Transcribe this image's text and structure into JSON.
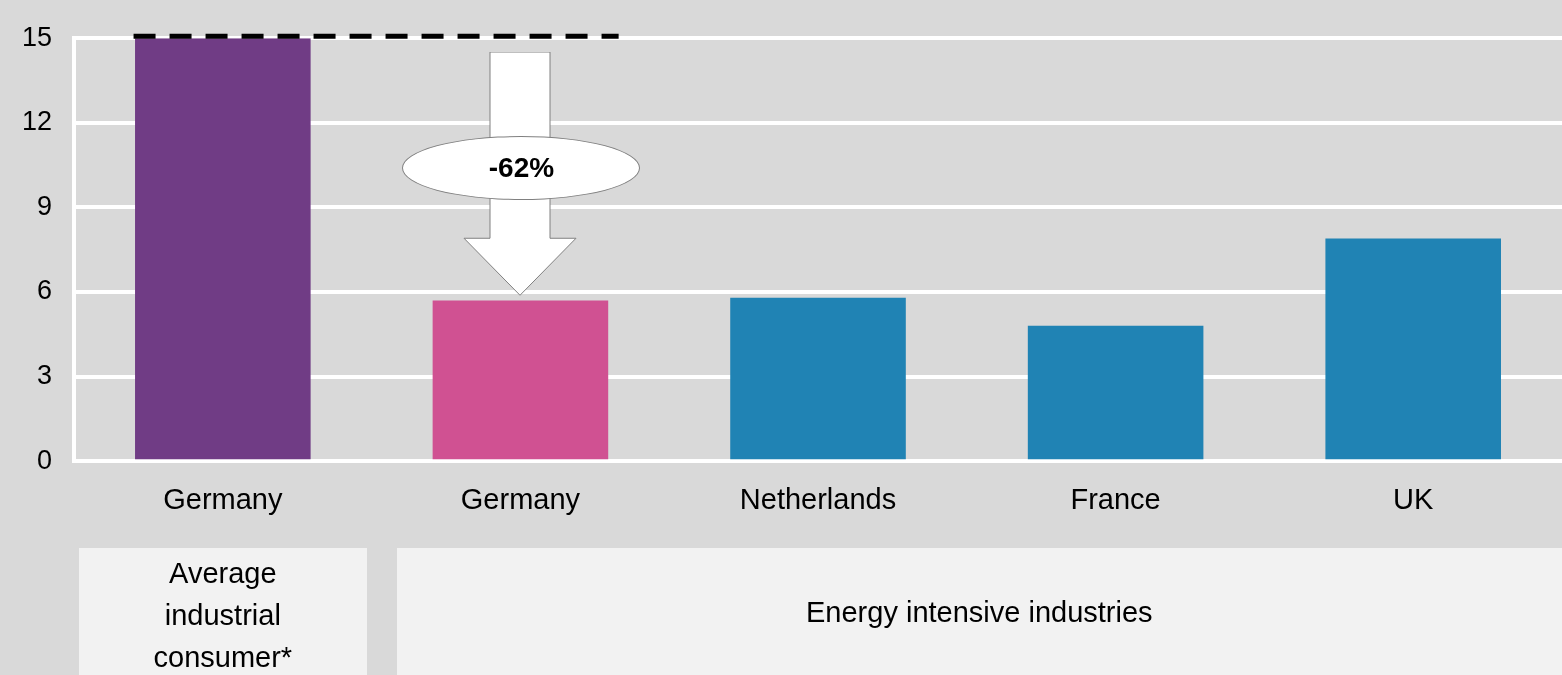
{
  "chart_data": {
    "type": "bar",
    "categories": [
      "Germany",
      "Germany",
      "Netherlands",
      "France",
      "UK"
    ],
    "values": [
      15,
      5.7,
      5.8,
      4.8,
      7.9
    ],
    "colors": [
      "#703c85",
      "#d05192",
      "#2083b4",
      "#2083b4",
      "#2083b4"
    ],
    "ylim": [
      0,
      15
    ],
    "yticks": [
      0,
      3,
      6,
      9,
      12,
      15
    ],
    "grid": "y",
    "legend": false,
    "ref_lines": [
      {
        "axis": "y",
        "value": 15,
        "color": "#000000",
        "line_style": "dashed"
      }
    ],
    "annotations": [
      "-62%",
      "Average industrial consumer*",
      "Energy intensive industries"
    ]
  }
}
